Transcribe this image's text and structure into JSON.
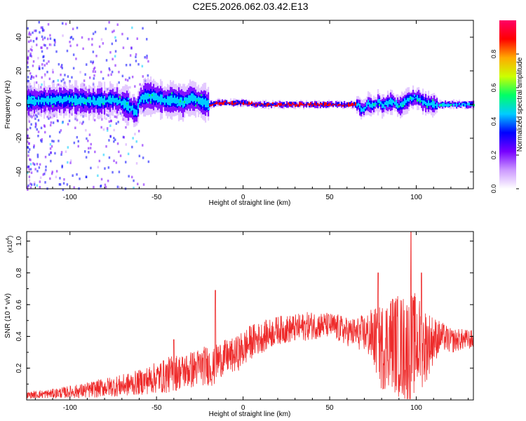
{
  "title": "C2E5.2026.062.03.42.E13",
  "colors": {
    "snr_line": "#ee2a2a",
    "axis": "#000000",
    "background": "#ffffff"
  },
  "chart_data": [
    {
      "id": "spectrogram",
      "type": "heatmap",
      "xlabel": "Height of straight line (km)",
      "ylabel": "Frequency (Hz)",
      "xlim": [
        -125,
        133
      ],
      "ylim": [
        -50,
        50
      ],
      "xticks": [
        -100,
        -50,
        0,
        50,
        100
      ],
      "xtick_labels": [
        "-100",
        "-50",
        "0",
        "50",
        "100"
      ],
      "yticks": [
        -40,
        -20,
        0,
        20,
        40
      ],
      "ytick_labels": [
        "-40",
        "-20",
        "0",
        "20",
        "40"
      ],
      "colorbar": {
        "label": "Normalized spectral amplitude",
        "range": [
          0,
          1
        ],
        "ticks": [
          0.0,
          0.2,
          0.4,
          0.6,
          0.8
        ],
        "tick_labels": [
          "0.0",
          "0.2",
          "0.4",
          "0.6",
          "0.8"
        ],
        "colormap": [
          "#ffffff",
          "#cc99ff",
          "#7700ff",
          "#0000ff",
          "#00ccff",
          "#00ff66",
          "#ccff00",
          "#ffaa00",
          "#ff0000",
          "#ff0066"
        ]
      },
      "ridge": {
        "description": "dominant frequency track (Hz) vs height (km)",
        "x": [
          -125,
          -100,
          -90,
          -80,
          -75,
          -70,
          -65,
          -62,
          -60,
          -55,
          -50,
          -45,
          -40,
          -35,
          -30,
          -25,
          -20,
          -15,
          -10,
          0,
          10,
          20,
          40,
          60,
          66,
          68,
          70,
          72,
          75,
          78,
          80,
          85,
          90,
          95,
          100,
          105,
          110,
          120,
          133
        ],
        "y": [
          2,
          3,
          2,
          2,
          3,
          1,
          -2,
          -5,
          3,
          5,
          4,
          2,
          3,
          1,
          4,
          2,
          0,
          1,
          1,
          1,
          0,
          0,
          0,
          0,
          0,
          -3,
          -2,
          1,
          -1,
          2,
          -1,
          2,
          -1,
          3,
          4,
          1,
          0,
          0,
          0
        ]
      }
    },
    {
      "id": "snr",
      "type": "line",
      "xlabel": "Height of straight line (km)",
      "ylabel": "SNR (10 * v/v)",
      "y_multiplier": "(x10",
      "y_multiplier_exponent": "4",
      "xlim": [
        -125,
        133
      ],
      "ylim": [
        0,
        1.06
      ],
      "xticks": [
        -100,
        -50,
        0,
        50,
        100
      ],
      "xtick_labels": [
        "-100",
        "-50",
        "0",
        "50",
        "100"
      ],
      "yticks": [
        0.2,
        0.4,
        0.6,
        0.8,
        1.0
      ],
      "ytick_labels": [
        "0.2",
        "0.4",
        "0.6",
        "0.8",
        "1.0"
      ],
      "series": [
        {
          "name": "SNR",
          "x": [
            -125,
            -110,
            -100,
            -90,
            -80,
            -70,
            -60,
            -50,
            -45,
            -40,
            -35,
            -30,
            -25,
            -20,
            -17,
            -15,
            -10,
            -5,
            0,
            5,
            10,
            20,
            30,
            40,
            50,
            55,
            60,
            65,
            70,
            75,
            80,
            85,
            90,
            95,
            100,
            105,
            110,
            115,
            120,
            125,
            133
          ],
          "center": [
            0.03,
            0.04,
            0.05,
            0.06,
            0.08,
            0.09,
            0.11,
            0.14,
            0.15,
            0.17,
            0.18,
            0.19,
            0.21,
            0.22,
            0.2,
            0.25,
            0.27,
            0.28,
            0.32,
            0.37,
            0.39,
            0.44,
            0.45,
            0.47,
            0.47,
            0.45,
            0.43,
            0.42,
            0.42,
            0.4,
            0.33,
            0.38,
            0.34,
            0.32,
            0.36,
            0.34,
            0.38,
            0.4,
            0.37,
            0.38,
            0.38
          ],
          "amplitude": [
            0.02,
            0.03,
            0.04,
            0.05,
            0.06,
            0.07,
            0.08,
            0.1,
            0.11,
            0.12,
            0.11,
            0.12,
            0.12,
            0.13,
            0.12,
            0.12,
            0.11,
            0.11,
            0.12,
            0.11,
            0.1,
            0.09,
            0.09,
            0.09,
            0.08,
            0.09,
            0.09,
            0.1,
            0.12,
            0.18,
            0.28,
            0.3,
            0.33,
            0.35,
            0.32,
            0.25,
            0.15,
            0.09,
            0.08,
            0.07,
            0.06
          ]
        }
      ],
      "peaks": [
        {
          "x": -40,
          "y": 0.38
        },
        {
          "x": -16,
          "y": 0.69
        },
        {
          "x": 78,
          "y": 0.8
        },
        {
          "x": 97,
          "y": 1.06
        },
        {
          "x": 103,
          "y": 0.8
        }
      ]
    }
  ]
}
